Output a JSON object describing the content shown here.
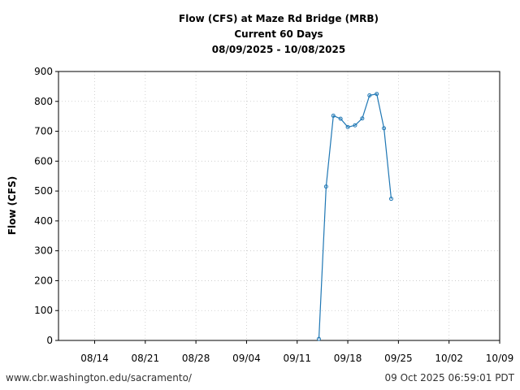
{
  "chart_data": {
    "type": "line",
    "title_lines": [
      "Flow (CFS) at Maze Rd Bridge (MRB)",
      "Current 60 Days",
      "08/09/2025 - 10/08/2025"
    ],
    "xlabel": "",
    "ylabel": "Flow (CFS)",
    "xlim": [
      "2025-08-09",
      "2025-10-09"
    ],
    "ylim": [
      0,
      900
    ],
    "x_ticks": [
      {
        "date": "2025-08-14",
        "label": "08/14"
      },
      {
        "date": "2025-08-21",
        "label": "08/21"
      },
      {
        "date": "2025-08-28",
        "label": "08/28"
      },
      {
        "date": "2025-09-04",
        "label": "09/04"
      },
      {
        "date": "2025-09-11",
        "label": "09/11"
      },
      {
        "date": "2025-09-18",
        "label": "09/18"
      },
      {
        "date": "2025-09-25",
        "label": "09/25"
      },
      {
        "date": "2025-10-02",
        "label": "10/02"
      },
      {
        "date": "2025-10-09",
        "label": "10/09"
      }
    ],
    "y_ticks": [
      0,
      100,
      200,
      300,
      400,
      500,
      600,
      700,
      800,
      900
    ],
    "grid": true,
    "line_color": "#1f77b4",
    "series": [
      {
        "points": [
          {
            "x": "2025-09-14",
            "y": 5
          },
          {
            "x": "2025-09-15",
            "y": 515
          },
          {
            "x": "2025-09-16",
            "y": 752
          },
          {
            "x": "2025-09-17",
            "y": 742
          },
          {
            "x": "2025-09-18",
            "y": 714
          },
          {
            "x": "2025-09-19",
            "y": 720
          },
          {
            "x": "2025-09-20",
            "y": 743
          },
          {
            "x": "2025-09-21",
            "y": 820
          },
          {
            "x": "2025-09-22",
            "y": 825
          },
          {
            "x": "2025-09-23",
            "y": 710
          },
          {
            "x": "2025-09-24",
            "y": 474
          }
        ]
      }
    ]
  },
  "footer": {
    "left": "www.cbr.washington.edu/sacramento/",
    "right": "09 Oct 2025 06:59:01 PDT"
  }
}
